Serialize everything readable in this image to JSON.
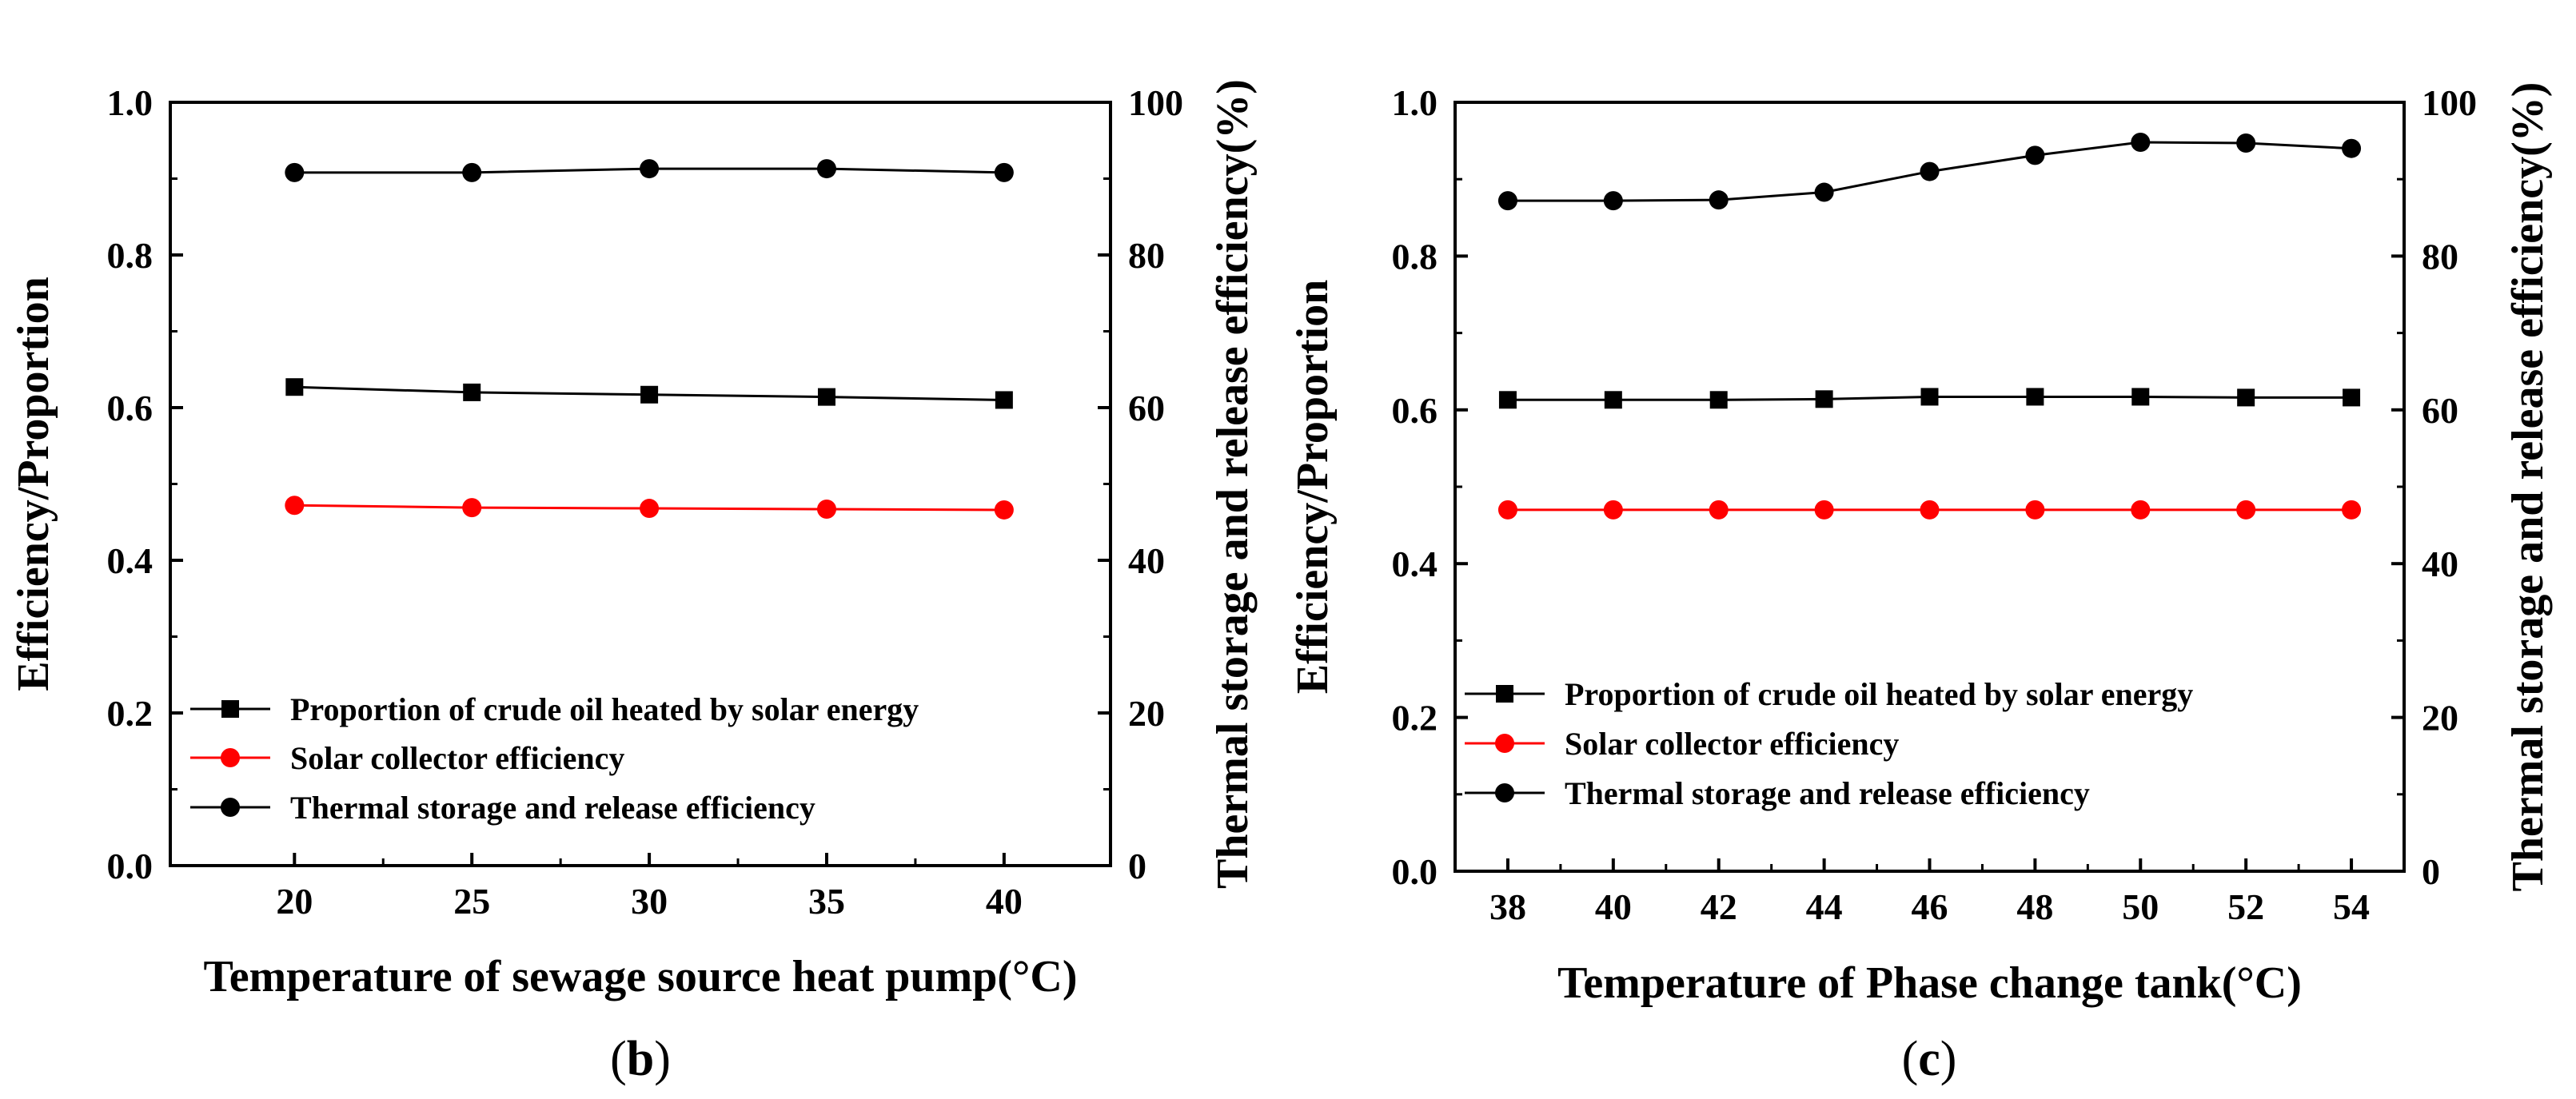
{
  "chart_data": [
    {
      "type": "line",
      "panel_label": "b",
      "xlabel": "Temperature of sewage source heat pump(°C)",
      "ylabel": "Efficiency/Proportion",
      "y2label": "Thermal storage and release efficiency(%)",
      "xlim": [
        16.5,
        43
      ],
      "ylim": [
        0,
        1.0
      ],
      "y2lim": [
        0,
        100
      ],
      "x_ticks": [
        "20",
        "25",
        "30",
        "35",
        "40"
      ],
      "y_ticks": [
        "0.0",
        "0.2",
        "0.4",
        "0.6",
        "0.8",
        "1.0"
      ],
      "y2_ticks": [
        "0",
        "20",
        "40",
        "60",
        "80",
        "100"
      ],
      "x": [
        20,
        25,
        30,
        35,
        40
      ],
      "legend_position": "lower-left",
      "series": [
        {
          "name": "Proportion of crude oil heated by solar energy",
          "marker": "square",
          "color": "#000000",
          "axis": "left",
          "values": [
            0.627,
            0.62,
            0.617,
            0.614,
            0.61
          ]
        },
        {
          "name": "Solar collector efficiency",
          "marker": "circle",
          "color": "#ff0000",
          "axis": "left",
          "values": [
            0.472,
            0.469,
            0.468,
            0.467,
            0.466
          ]
        },
        {
          "name": "Thermal storage and release efficiency",
          "marker": "circle",
          "color": "#000000",
          "axis": "right",
          "values": [
            90.8,
            90.8,
            91.3,
            91.3,
            90.8
          ]
        }
      ]
    },
    {
      "type": "line",
      "panel_label": "c",
      "xlabel": "Temperature of Phase change tank(°C)",
      "ylabel": "Efficiency/Proportion",
      "y2label": "Thermal storage and release efficiency(%)",
      "xlim": [
        37,
        55
      ],
      "ylim": [
        0,
        1.0
      ],
      "y2lim": [
        0,
        100
      ],
      "x_ticks": [
        "38",
        "40",
        "42",
        "44",
        "46",
        "48",
        "50",
        "52",
        "54"
      ],
      "y_ticks": [
        "0.0",
        "0.2",
        "0.4",
        "0.6",
        "0.8",
        "1.0"
      ],
      "y2_ticks": [
        "0",
        "20",
        "40",
        "60",
        "80",
        "100"
      ],
      "x": [
        38,
        40,
        42,
        44,
        46,
        48,
        50,
        52,
        54
      ],
      "legend_position": "lower-left",
      "series": [
        {
          "name": "Proportion of crude oil heated by solar energy",
          "marker": "square",
          "color": "#000000",
          "axis": "left",
          "values": [
            0.613,
            0.613,
            0.613,
            0.614,
            0.617,
            0.617,
            0.617,
            0.616,
            0.616
          ]
        },
        {
          "name": "Solar collector efficiency",
          "marker": "circle",
          "color": "#ff0000",
          "axis": "left",
          "values": [
            0.47,
            0.47,
            0.47,
            0.47,
            0.47,
            0.47,
            0.47,
            0.47,
            0.47
          ]
        },
        {
          "name": "Thermal storage and release efficiency",
          "marker": "circle",
          "color": "#000000",
          "axis": "right",
          "values": [
            87.2,
            87.2,
            87.3,
            88.3,
            91.0,
            93.1,
            94.8,
            94.7,
            94.0
          ]
        }
      ]
    }
  ]
}
